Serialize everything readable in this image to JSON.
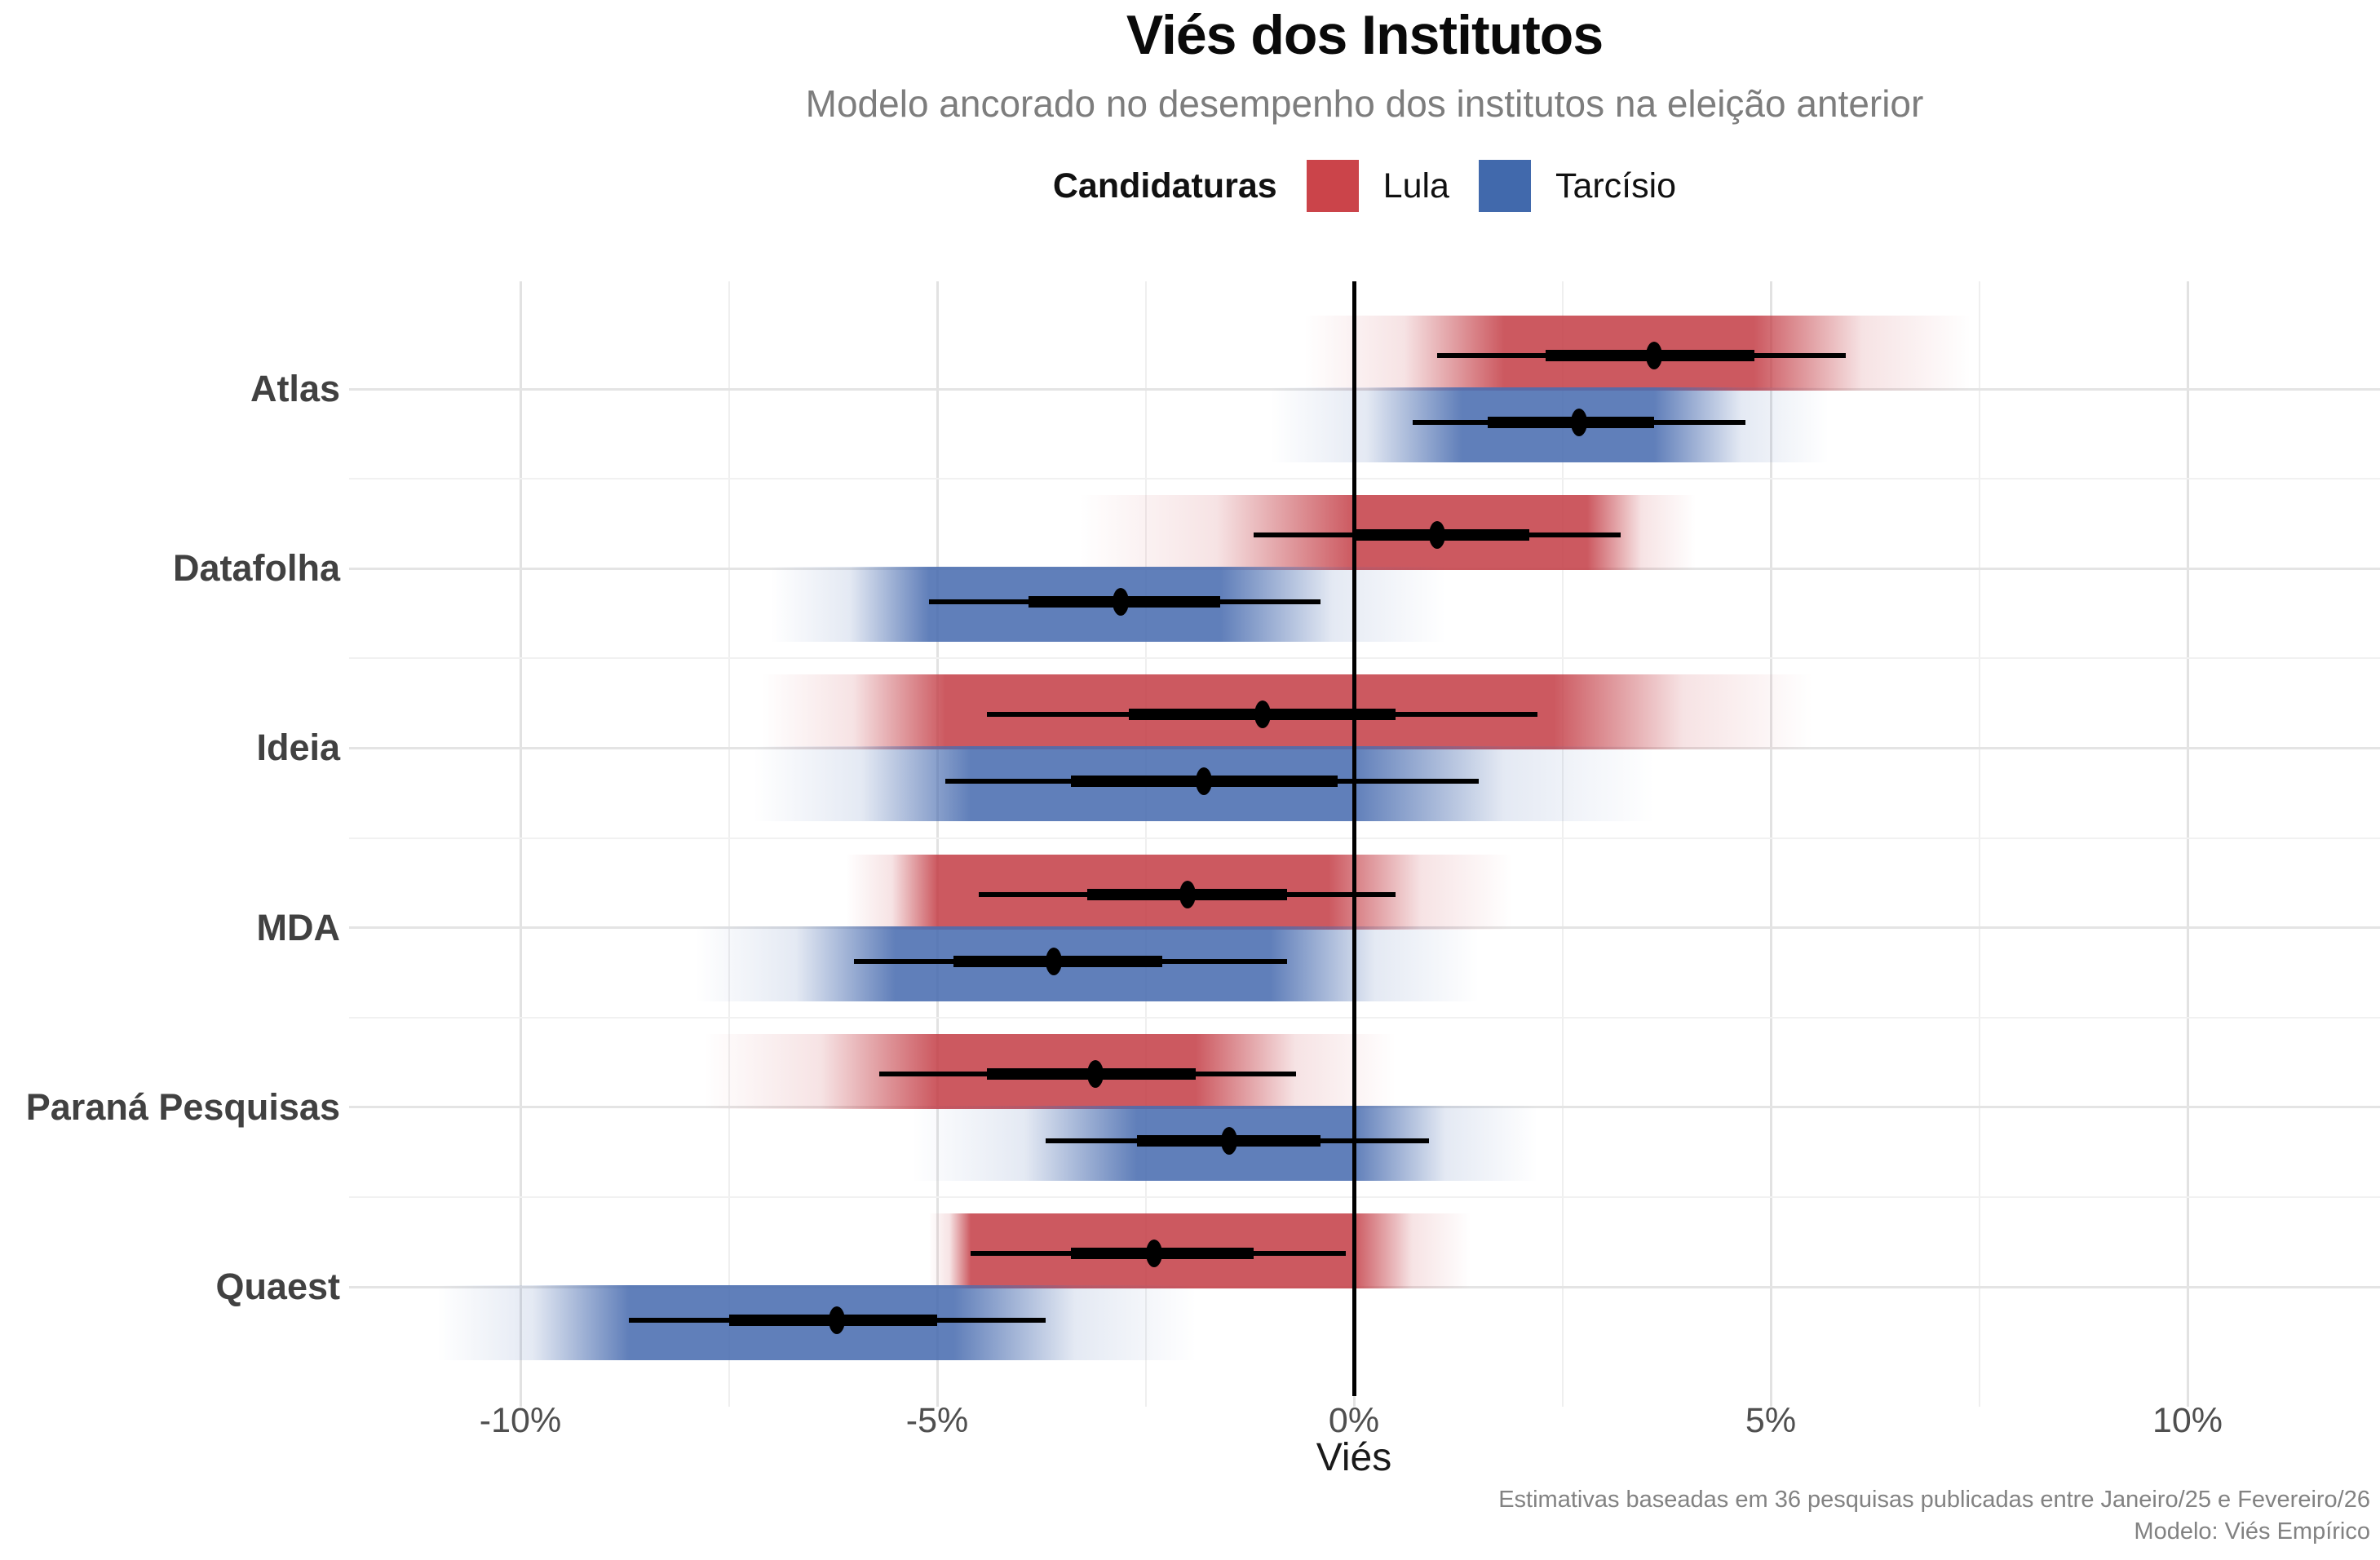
{
  "title": "Viés dos Institutos",
  "subtitle": "Modelo ancorado no desempenho dos institutos na eleição anterior",
  "legend": {
    "title": "Candidaturas",
    "items": [
      {
        "label": "Lula",
        "color": "#cb444a"
      },
      {
        "label": "Tarcísio",
        "color": "#4169ac"
      }
    ]
  },
  "axis": {
    "x_label": "Viés",
    "x_ticks": [
      {
        "value": -10,
        "label": "-10%"
      },
      {
        "value": -5,
        "label": "-5%"
      },
      {
        "value": 0,
        "label": "0%"
      },
      {
        "value": 5,
        "label": "5%"
      },
      {
        "value": 10,
        "label": "10%"
      }
    ],
    "x_minor_ticks": [
      -7.5,
      -2.5,
      2.5,
      7.5
    ]
  },
  "caption_lines": [
    "Estimativas baseadas em 36 pesquisas publicadas entre Janeiro/25 e Fevereiro/26",
    "Modelo: Viés Empírico"
  ],
  "chart_data": {
    "type": "pointinterval-gradient (dot = mediana, barra grossa = intervalo interno, linha fina = intervalo externo, faixa degradê = densidade)",
    "x_unit": "pontos percentuais de viés",
    "x_range": [
      -12,
      12.3
    ],
    "grid": "on",
    "legend_position": "top-center",
    "series_colors": {
      "Lula": "#c5424a",
      "Tarcísio": "#4a6db0"
    },
    "institutes": [
      {
        "name": "Atlas",
        "rows": [
          {
            "candidate": "Lula",
            "median": 3.6,
            "ci_inner": [
              2.3,
              4.8
            ],
            "ci_outer": [
              1.0,
              5.9
            ],
            "density": [
              -0.6,
              7.4
            ],
            "density_core": [
              1.8,
              4.8
            ]
          },
          {
            "candidate": "Tarcísio",
            "median": 2.7,
            "ci_inner": [
              1.6,
              3.6
            ],
            "ci_outer": [
              0.7,
              4.7
            ],
            "density": [
              -1.0,
              5.7
            ],
            "density_core": [
              1.3,
              3.6
            ]
          }
        ]
      },
      {
        "name": "Datafolha",
        "rows": [
          {
            "candidate": "Lula",
            "median": 1.0,
            "ci_inner": [
              0.0,
              2.1
            ],
            "ci_outer": [
              -1.2,
              3.2
            ],
            "density": [
              -3.3,
              4.1
            ],
            "density_core": [
              0.0,
              2.8
            ]
          },
          {
            "candidate": "Tarcísio",
            "median": -2.8,
            "ci_inner": [
              -3.9,
              -1.6
            ],
            "ci_outer": [
              -5.1,
              -0.4
            ],
            "density": [
              -7.0,
              1.1
            ],
            "density_core": [
              -5.1,
              -1.6
            ]
          }
        ]
      },
      {
        "name": "Ideia",
        "rows": [
          {
            "candidate": "Lula",
            "median": -1.1,
            "ci_inner": [
              -2.7,
              0.5
            ],
            "ci_outer": [
              -4.4,
              2.2
            ],
            "density": [
              -7.1,
              5.5
            ],
            "density_core": [
              -4.9,
              2.4
            ]
          },
          {
            "candidate": "Tarcísio",
            "median": -1.8,
            "ci_inner": [
              -3.4,
              -0.2
            ],
            "ci_outer": [
              -4.9,
              1.5
            ],
            "density": [
              -7.2,
              3.6
            ],
            "density_core": [
              -4.6,
              0.0
            ]
          }
        ]
      },
      {
        "name": "MDA",
        "rows": [
          {
            "candidate": "Lula",
            "median": -2.0,
            "ci_inner": [
              -3.2,
              -0.8
            ],
            "ci_outer": [
              -4.5,
              0.5
            ],
            "density": [
              -6.1,
              1.9
            ],
            "density_core": [
              -5.0,
              -0.3
            ]
          },
          {
            "candidate": "Tarcísio",
            "median": -3.6,
            "ci_inner": [
              -4.8,
              -2.3
            ],
            "ci_outer": [
              -6.0,
              -0.8
            ],
            "density": [
              -7.9,
              1.5
            ],
            "density_core": [
              -5.5,
              -1.0
            ]
          }
        ]
      },
      {
        "name": "Paraná Pesquisas",
        "rows": [
          {
            "candidate": "Lula",
            "median": -3.1,
            "ci_inner": [
              -4.4,
              -1.9
            ],
            "ci_outer": [
              -5.7,
              -0.7
            ],
            "density": [
              -7.8,
              0.5
            ],
            "density_core": [
              -5.0,
              -1.9
            ]
          },
          {
            "candidate": "Tarcísio",
            "median": -1.5,
            "ci_inner": [
              -2.6,
              -0.4
            ],
            "ci_outer": [
              -3.7,
              0.9
            ],
            "density": [
              -5.3,
              2.2
            ],
            "density_core": [
              -2.6,
              0.0
            ]
          }
        ]
      },
      {
        "name": "Quaest",
        "rows": [
          {
            "candidate": "Lula",
            "median": -2.4,
            "ci_inner": [
              -3.4,
              -1.2
            ],
            "ci_outer": [
              -4.6,
              -0.1
            ],
            "density": [
              -5.1,
              1.4
            ],
            "density_core": [
              -4.6,
              0.0
            ]
          },
          {
            "candidate": "Tarcísio",
            "median": -6.2,
            "ci_inner": [
              -7.5,
              -5.0
            ],
            "ci_outer": [
              -8.7,
              -3.7
            ],
            "density": [
              -11.0,
              -1.9
            ],
            "density_core": [
              -8.7,
              -4.8
            ]
          }
        ]
      }
    ]
  }
}
